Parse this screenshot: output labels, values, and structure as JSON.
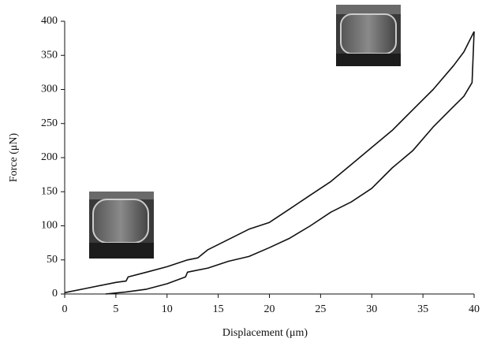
{
  "chart_data": {
    "type": "line",
    "xlabel": "Displacement (μm)",
    "ylabel": "Force (μN)",
    "xlim": [
      0,
      40
    ],
    "xticks": [
      0,
      5,
      10,
      15,
      20,
      25,
      30,
      35,
      40
    ],
    "ylim": [
      0,
      400
    ],
    "yticks": [
      0,
      50,
      100,
      150,
      200,
      250,
      300,
      350,
      400
    ],
    "series": [
      {
        "color": "#111111",
        "x": [
          0,
          2,
          5,
          6,
          6.2,
          8,
          10,
          12,
          13,
          14,
          16,
          18,
          20,
          22,
          24,
          26,
          28,
          30,
          32,
          34,
          36,
          38,
          39,
          40
        ],
        "values": [
          2,
          8,
          17,
          19,
          25,
          32,
          40,
          50,
          53,
          65,
          80,
          95,
          105,
          125,
          145,
          165,
          190,
          215,
          240,
          270,
          300,
          335,
          355,
          385
        ]
      },
      {
        "color": "#111111",
        "x": [
          40,
          39.8,
          39,
          38,
          36,
          34,
          32,
          31,
          30,
          28,
          26,
          24,
          22,
          20,
          18,
          16,
          14,
          12,
          11.8,
          10,
          8,
          6,
          4
        ],
        "values": [
          385,
          310,
          290,
          275,
          245,
          210,
          185,
          170,
          155,
          135,
          120,
          100,
          82,
          68,
          55,
          48,
          38,
          32,
          25,
          15,
          7,
          3,
          0
        ]
      }
    ]
  }
}
